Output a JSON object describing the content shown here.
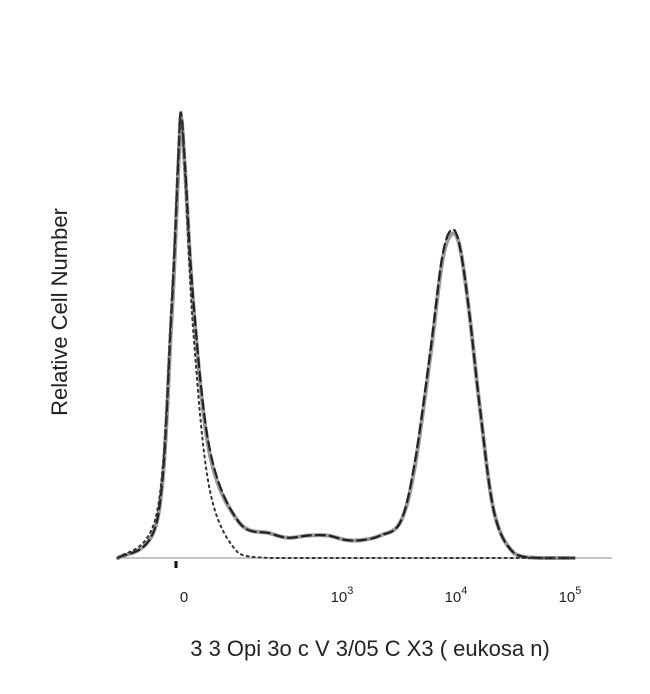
{
  "chart_data": {
    "type": "line",
    "title": "",
    "ylabel": "Relative Cell Number",
    "xlabel": "3 3 Opi 3o c V 3/05 C X3 ( eukosa n)",
    "x_scale": "logicle",
    "xlim": [
      -30,
      100000
    ],
    "ylim": [
      0,
      1
    ],
    "x_ticks": [
      {
        "value": 0,
        "base": "0",
        "exp": ""
      },
      {
        "value": 1000,
        "base": "10",
        "exp": "3"
      },
      {
        "value": 10000,
        "base": "10",
        "exp": "4"
      },
      {
        "value": 100000,
        "base": "10",
        "exp": "5"
      }
    ],
    "grid": false,
    "series": [
      {
        "style": "solid-gray",
        "color": "#9a9a9a",
        "x": [
          -200,
          -50,
          -20,
          -5,
          0,
          5,
          15,
          35,
          70,
          120,
          200,
          350,
          600,
          1000,
          1400,
          2000,
          3000,
          4000,
          5500,
          7000,
          8500,
          10000,
          12000,
          15000,
          20000,
          30000,
          50000,
          100000
        ],
        "y": [
          0.0,
          0.08,
          0.52,
          0.88,
          0.98,
          0.86,
          0.56,
          0.23,
          0.08,
          0.055,
          0.045,
          0.05,
          0.05,
          0.04,
          0.04,
          0.05,
          0.08,
          0.2,
          0.45,
          0.66,
          0.72,
          0.69,
          0.55,
          0.33,
          0.1,
          0.01,
          0.0,
          0.0
        ]
      },
      {
        "style": "dashed-black",
        "color": "#222222",
        "x": [
          -200,
          -50,
          -20,
          -5,
          0,
          5,
          15,
          35,
          70,
          120,
          200,
          350,
          600,
          1000,
          1400,
          2000,
          3000,
          4000,
          5500,
          7000,
          8500,
          10000,
          12000,
          15000,
          20000,
          30000,
          50000,
          100000
        ],
        "y": [
          0.0,
          0.08,
          0.54,
          0.9,
          0.99,
          0.87,
          0.57,
          0.24,
          0.08,
          0.055,
          0.045,
          0.05,
          0.05,
          0.04,
          0.04,
          0.05,
          0.08,
          0.21,
          0.46,
          0.67,
          0.73,
          0.69,
          0.55,
          0.33,
          0.1,
          0.01,
          0.0,
          0.0
        ]
      },
      {
        "style": "dotted-isotype",
        "color": "#333333",
        "x": [
          -200,
          -50,
          -20,
          -5,
          0,
          5,
          15,
          35,
          70,
          120,
          200,
          350,
          600,
          1000,
          5000,
          100000
        ],
        "y": [
          0.0,
          0.1,
          0.56,
          0.92,
          0.98,
          0.85,
          0.5,
          0.15,
          0.01,
          0.0,
          0.0,
          0.0,
          0.0,
          0.0,
          0.0,
          0.0
        ]
      }
    ]
  }
}
